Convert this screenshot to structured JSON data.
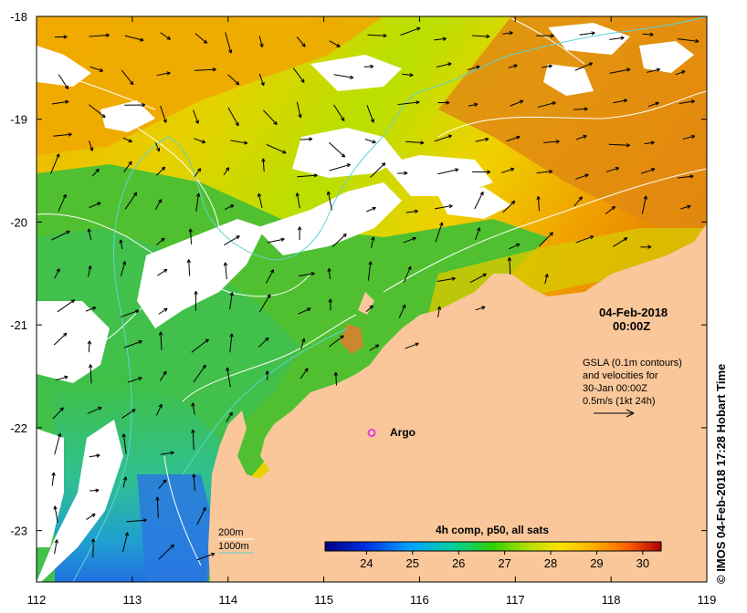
{
  "map": {
    "date_title": "04-Feb-2018",
    "time_title": "00:00Z",
    "legend_text": {
      "line1": "GSLA (0.1m contours)",
      "line2": "and velocities for",
      "line3": "30-Jan 00:00Z",
      "line4": "0.5m/s (1kt 24h)"
    },
    "depth_labels": {
      "d200": "200m",
      "d1000": "1000m"
    },
    "argo_label": "Argo",
    "credit": "© IMOS 04-Feb-2018 17:28 Hobart Time",
    "colorbar_title": "4h comp, p50, all sats",
    "colorbar_ticks": [
      "24",
      "25",
      "26",
      "27",
      "28",
      "29",
      "30"
    ],
    "colorbar_min": 23.1,
    "colorbar_max": 30.4,
    "lon_ticks": [
      "112",
      "113",
      "114",
      "115",
      "116",
      "117",
      "118",
      "119"
    ],
    "lat_ticks": [
      "-18",
      "-19",
      "-20",
      "-21",
      "-22",
      "-23"
    ],
    "lon_range": [
      112,
      119
    ],
    "lat_range": [
      -23.5,
      -18
    ],
    "argo": {
      "lon": 115.5,
      "lat": -22.05
    },
    "colors": {
      "land": "#f9c79a",
      "cloud": "#ffffff",
      "contour_gsla": "#ffffff",
      "isobath_1000": "#5fd3d3",
      "argo": "#e040e0",
      "arrow": "#000000"
    }
  }
}
